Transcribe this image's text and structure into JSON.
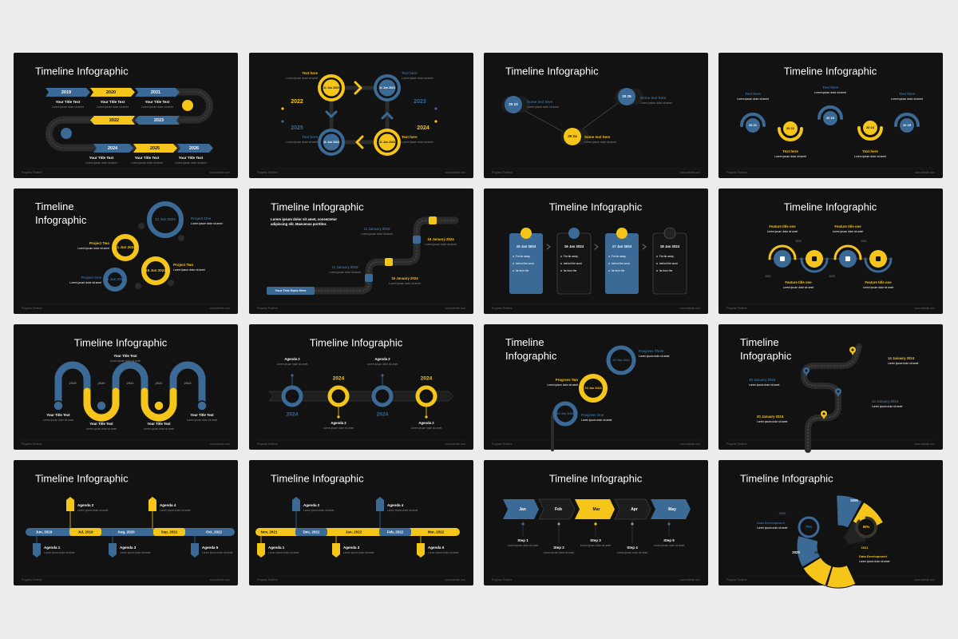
{
  "footer": {
    "left": "Progress Timeline",
    "right": "www.website.com"
  },
  "slides": [
    {
      "title": "Timeline Infographic",
      "texts": [
        "2019",
        "2020",
        "2021",
        "Your Title Text",
        "Your Title Text",
        "Your Title Text",
        "Lorem ipsum dolor sit amet",
        "Lorem ipsum dolor sit amet",
        "Lorem ipsum dolor sit amet",
        "2022",
        "2023",
        "2024",
        "2025",
        "2026",
        "Your Title Text",
        "Your Title Text",
        "Your Title Text",
        "Lorem ipsum dolor sit amet",
        "Lorem ipsum dolor sit amet",
        "Lorem ipsum dolor sit amet"
      ]
    },
    {
      "texts": [
        "11 Jun 2024",
        "11 Jun 2024",
        "11 Jun 2024",
        "11 Jun 2024",
        "2022",
        "2023",
        "2025",
        "2024",
        "Text here",
        "Text here",
        "Text here",
        "Text here",
        "Lorem ipsum dolor sit amet",
        "Lorem ipsum dolor sit amet",
        "Lorem ipsum dolor sit amet",
        "Lorem ipsum dolor sit amet"
      ]
    },
    {
      "title": "Timeline Infographic",
      "texts": [
        "20 23",
        "20 24",
        "20 25",
        "Some text here",
        "Some text here",
        "Some text here",
        "Lorem ipsum dolor sit amet",
        "Lorem ipsum dolor sit amet",
        "Lorem ipsum dolor sit amet"
      ]
    },
    {
      "title": "Timeline Infographic",
      "texts": [
        "20 21",
        "20 22",
        "20 23",
        "20 24",
        "20 25",
        "Text here",
        "Text here",
        "Text here",
        "Text here",
        "Text here",
        "Lorem ipsum dolor sit amet",
        "Lorem ipsum dolor sit amet",
        "Lorem ipsum dolor sit amet",
        "Lorem ipsum dolor sit amet",
        "Lorem ipsum dolor sit amet"
      ]
    },
    {
      "title": "Timeline Infographic",
      "texts": [
        "12 Jun 2023",
        "11 Jun 2024",
        "16 Jun 2024",
        "16 Jun 2024",
        "Project One",
        "Project Two",
        "Project Two",
        "Project One",
        "Lorem ipsum dolor sit amet",
        "Lorem ipsum dolor sit amet",
        "Lorem ipsum dolor sit amet",
        "Lorem ipsum dolor sit amet"
      ]
    },
    {
      "title": "Timeline Infographic",
      "texts": [
        "Lorem ipsum dolor sit amet, consectetur",
        "adipiscing elit. Maecenas porttitor.",
        "11 January 2024",
        "16 January 2024",
        "11 January 2024",
        "16 January 2024",
        "Lorem ipsum dolor sit amet",
        "Lorem ipsum dolor sit amet",
        "Lorem ipsum dolor sit amet",
        "Lorem ipsum dolor sit amet",
        "Your Text Goes Here"
      ]
    },
    {
      "title": "Timeline Infographic",
      "texts": [
        "15 Jan 2024",
        "16 Jan 2024",
        "17 Jan 2024",
        "18 Jan 2024",
        "Far far away,",
        "behind the word",
        "far from the",
        "Far far away,",
        "behind the word",
        "far from the",
        "Far far away,",
        "behind the word",
        "far from the",
        "Far far away,",
        "behind the word",
        "far from the"
      ]
    },
    {
      "title": "Timeline Infographic",
      "texts": [
        "Feature title one",
        "Feature title one",
        "Feature title one",
        "Feature title one",
        "2020",
        "2021",
        "2022",
        "2023",
        "Lorem ipsum dolor sit amet",
        "Lorem ipsum dolor sit amet",
        "Lorem ipsum dolor sit amet",
        "Lorem ipsum dolor sit amet"
      ]
    },
    {
      "title": "Timeline Infographic",
      "texts": [
        "Your Title Text",
        "2019",
        "2020",
        "2021",
        "2022",
        "2023",
        "Your Title Text",
        "Your Title Text",
        "Your Title Text",
        "Your Title Text",
        "Lorem ipsum dolor sit amet",
        "Lorem ipsum dolor sit amet",
        "Lorem ipsum dolor sit amet",
        "Lorem ipsum dolor sit amet",
        "Lorem ipsum dolor sit amet"
      ]
    },
    {
      "title": "Timeline Infographic",
      "texts": [
        "Agenda 2",
        "Agenda 2",
        "2024",
        "2024",
        "2024",
        "2024",
        "Agenda 2",
        "Agenda 2",
        "Lorem ipsum dolor sit amet",
        "Lorem ipsum dolor sit amet",
        "Lorem ipsum dolor sit amet",
        "Lorem ipsum dolor sit amet"
      ]
    },
    {
      "title": "Timeline Infographic",
      "texts": [
        "20 Jan 2024",
        "24 Jan 2024",
        "20 Jan 2024",
        "Progress Three",
        "Progress Two",
        "Progress One",
        "Lorem ipsum dolor sit amet",
        "Lorem ipsum dolor sit amet",
        "Lorem ipsum dolor sit amet"
      ]
    },
    {
      "title": "Timeline Infographic",
      "texts": [
        "14 January 2024",
        "15 January 2024",
        "13 January 2024",
        "20 January 2024",
        "Lorem ipsum dolor sit amet",
        "Lorem ipsum dolor sit amet",
        "Lorem ipsum dolor sit amet",
        "Lorem ipsum dolor sit amet"
      ]
    },
    {
      "title": "Timeline Infographic",
      "texts": [
        "Jun, 2019",
        "Jul, 2019",
        "Aug, 2020",
        "Sep, 2021",
        "Oct, 2022",
        "Agenda 2",
        "Agenda 4",
        "Agenda 1",
        "Agenda 3",
        "Agenda 5",
        "Lorem ipsum dolor sit amet",
        "Lorem ipsum dolor sit amet",
        "Lorem ipsum dolor sit amet",
        "Lorem ipsum dolor sit amet",
        "Lorem ipsum dolor sit amet"
      ]
    },
    {
      "title": "Timeline Infographic",
      "texts": [
        "Nov, 2021",
        "Dec, 2021",
        "Jan, 2022",
        "Feb, 2022",
        "Mar, 2022",
        "Agenda 2",
        "Agenda 4",
        "Agenda 1",
        "Agenda 3",
        "Agenda 5",
        "Lorem ipsum dolor sit amet",
        "Lorem ipsum dolor sit amet",
        "Lorem ipsum dolor sit amet",
        "Lorem ipsum dolor sit amet",
        "Lorem ipsum dolor sit amet"
      ]
    },
    {
      "title": "Timeline Infographic",
      "texts": [
        "Jan",
        "Feb",
        "Mar",
        "Apr",
        "May",
        "Step 1",
        "Step 2",
        "Step 3",
        "Step 4",
        "Step 5",
        "Lorem ipsum dolor sit amet",
        "Lorem ipsum dolor sit amet",
        "Lorem ipsum dolor sit amet",
        "Lorem ipsum dolor sit amet",
        "Lorem ipsum dolor sit amet"
      ]
    },
    {
      "title": "Timeline Infographic",
      "texts": [
        "2025",
        "Today",
        "2024",
        "2026",
        "2023",
        "2022",
        "2021",
        "75%",
        "90%",
        "Data Development",
        "Data Development",
        "Lorem ipsum dolor sit amet",
        "Lorem ipsum dolor sit amet"
      ]
    }
  ]
}
